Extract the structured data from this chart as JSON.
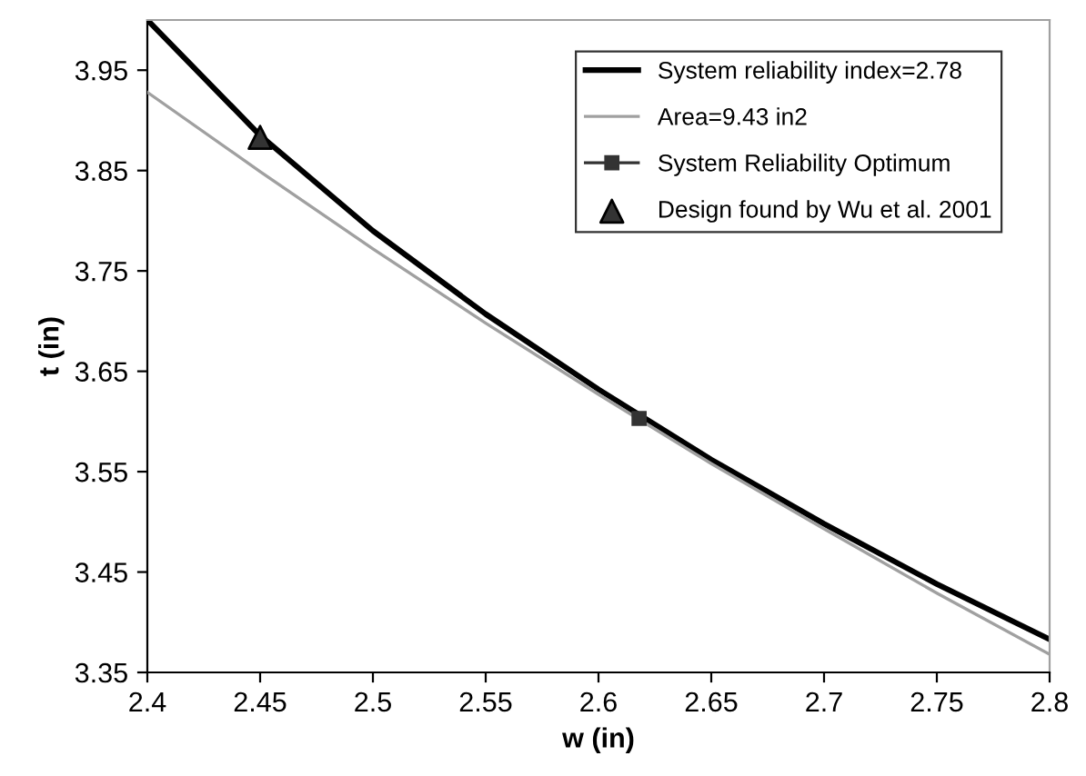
{
  "chart_data": {
    "type": "line",
    "xlabel": "w (in)",
    "ylabel": "t (in)",
    "xlim": [
      2.4,
      2.8
    ],
    "xticks": [
      2.4,
      2.45,
      2.5,
      2.55,
      2.6,
      2.65,
      2.7,
      2.75,
      2.8
    ],
    "ylim": [
      3.35,
      4.0
    ],
    "yticks": [
      3.35,
      3.45,
      3.55,
      3.65,
      3.75,
      3.85,
      3.95
    ],
    "grid": false,
    "legend": "top right",
    "marker": "none",
    "series": [
      {
        "name": "System reliability index=2.78",
        "color": "#000000",
        "x": [
          2.4,
          2.45,
          2.5,
          2.55,
          2.6,
          2.65,
          2.7,
          2.75,
          2.8
        ],
        "values": [
          4.0,
          3.885,
          3.79,
          3.707,
          3.632,
          3.562,
          3.498,
          3.438,
          3.383
        ]
      },
      {
        "name": "Area=9.43 in2",
        "color": "#a0a0a0",
        "x": [
          2.4,
          2.45,
          2.5,
          2.55,
          2.6,
          2.65,
          2.7,
          2.75,
          2.8
        ],
        "values": [
          3.928,
          3.849,
          3.772,
          3.698,
          3.627,
          3.558,
          3.493,
          3.429,
          3.368
        ]
      },
      {
        "name": "System Reliability Optimum",
        "type": "line",
        "marker": "square",
        "color": "#333333",
        "x": [
          2.618
        ],
        "values": [
          3.603
        ]
      },
      {
        "name": "Design found by Wu et al. 2001",
        "type": "scatter",
        "marker": "triangle",
        "color": "#333333",
        "x": [
          2.45
        ],
        "values": [
          3.883
        ]
      }
    ]
  }
}
